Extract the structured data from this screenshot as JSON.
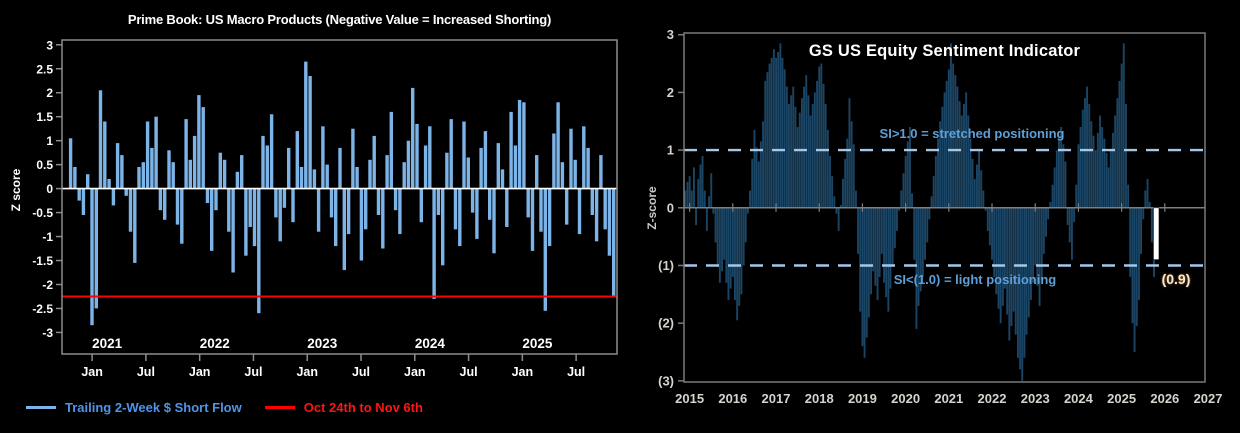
{
  "page": {
    "background": "#000000"
  },
  "chart_data": [
    {
      "id": "prime-book",
      "type": "bar",
      "title": "Prime Book: US Macro Products (Negative Value = Increased Shorting)",
      "ylabel": "Z score",
      "ylim": [
        -3,
        3
      ],
      "xlim": [
        2020.72,
        2025.88
      ],
      "grid": false,
      "bar_color": "#7CB4E8",
      "zero_line_color": "#FFFFFF",
      "frame_color": "#8C8C8C",
      "y_ticks": [
        {
          "v": 3,
          "label": "3"
        },
        {
          "v": 2.5,
          "label": "2.5"
        },
        {
          "v": 2,
          "label": "2"
        },
        {
          "v": 1.5,
          "label": "1.5"
        },
        {
          "v": 1,
          "label": "1"
        },
        {
          "v": 0.5,
          "label": "0.5"
        },
        {
          "v": 0,
          "label": "0"
        },
        {
          "v": -0.5,
          "label": "-0.5"
        },
        {
          "v": -1,
          "label": "-1"
        },
        {
          "v": -1.5,
          "label": "-1.5"
        },
        {
          "v": -2,
          "label": "-2"
        },
        {
          "v": -2.5,
          "label": "-2.5"
        },
        {
          "v": -3,
          "label": "-3"
        }
      ],
      "x_ticks": [
        {
          "t": 2021.0,
          "label": "Jan"
        },
        {
          "t": 2021.5,
          "label": "Jul"
        },
        {
          "t": 2022.0,
          "label": "Jan"
        },
        {
          "t": 2022.5,
          "label": "Jul"
        },
        {
          "t": 2023.0,
          "label": "Jan"
        },
        {
          "t": 2023.5,
          "label": "Jul"
        },
        {
          "t": 2024.0,
          "label": "Jan"
        },
        {
          "t": 2024.5,
          "label": "Jul"
        },
        {
          "t": 2025.0,
          "label": "Jan"
        },
        {
          "t": 2025.5,
          "label": "Jul"
        }
      ],
      "year_labels": [
        {
          "t": 2021.14,
          "label": "2021"
        },
        {
          "t": 2022.14,
          "label": "2022"
        },
        {
          "t": 2023.14,
          "label": "2023"
        },
        {
          "t": 2024.14,
          "label": "2024"
        },
        {
          "t": 2025.14,
          "label": "2025"
        }
      ],
      "x_start": 2020.8,
      "x_step": 0.03976,
      "values": [
        1.05,
        0.45,
        -0.25,
        -0.55,
        0.3,
        -2.85,
        -2.5,
        2.05,
        1.4,
        0.2,
        -0.35,
        0.95,
        0.7,
        -0.15,
        -0.9,
        -1.55,
        0.45,
        0.55,
        1.4,
        0.85,
        1.5,
        -0.45,
        -0.65,
        0.8,
        0.55,
        -0.75,
        -1.15,
        1.45,
        0.6,
        1.1,
        1.95,
        1.7,
        -0.3,
        -1.3,
        -0.45,
        0.75,
        0.6,
        -0.9,
        -1.75,
        0.35,
        0.7,
        -1.4,
        -0.8,
        -1.2,
        -2.6,
        1.1,
        0.9,
        1.55,
        -0.6,
        -1.1,
        -0.4,
        0.85,
        -0.7,
        1.2,
        0.45,
        2.65,
        2.35,
        0.4,
        -0.9,
        1.3,
        0.5,
        -0.6,
        -1.2,
        0.85,
        -1.7,
        -0.95,
        1.25,
        0.45,
        -1.5,
        -0.85,
        0.6,
        1.1,
        -0.55,
        -1.25,
        0.7,
        1.6,
        -0.45,
        -0.95,
        0.55,
        1.0,
        2.1,
        1.35,
        -0.7,
        0.9,
        1.3,
        -2.3,
        -0.55,
        -1.6,
        0.75,
        1.45,
        -0.85,
        -1.2,
        1.4,
        0.65,
        -0.5,
        -1.05,
        0.85,
        1.2,
        -0.65,
        -1.35,
        0.95,
        0.4,
        -0.8,
        1.6,
        0.9,
        1.85,
        1.8,
        -0.6,
        -1.3,
        0.7,
        -0.9,
        -2.55,
        -1.2,
        1.15,
        1.8,
        0.55,
        -0.75,
        1.25,
        0.6,
        -0.95,
        1.3,
        0.85,
        -0.55,
        -1.1,
        0.7,
        -0.85,
        -1.4,
        -2.25
      ],
      "reference_line": {
        "value": -2.25,
        "color": "#FF0000"
      },
      "legend": [
        {
          "label": "Trailing 2-Week $ Short Flow",
          "color": "#4F94E8",
          "line_color": "#7CB4E8"
        },
        {
          "label": "Oct 24th to Nov 6th",
          "color": "#FF1414",
          "line_color": "#FF0000"
        }
      ]
    },
    {
      "id": "gs-sentiment",
      "type": "bar",
      "title": "GS US Equity Sentiment Indicator",
      "ylabel": "Z-score",
      "ylim": [
        -3,
        3
      ],
      "xlim": [
        2014.87,
        2026.93
      ],
      "grid": false,
      "bar_color": "#1B4565",
      "zero_line_color": "#7E7E7E",
      "frame_color": "#7A7A7A",
      "dashed_line_color": "#A3C8EA",
      "y_ticks": [
        {
          "v": 3,
          "label": "3"
        },
        {
          "v": 2,
          "label": "2"
        },
        {
          "v": 1,
          "label": "1"
        },
        {
          "v": 0,
          "label": "0"
        },
        {
          "v": -1,
          "label": "(1)"
        },
        {
          "v": -2,
          "label": "(2)"
        },
        {
          "v": -3,
          "label": "(3)"
        }
      ],
      "x_ticks": [
        {
          "t": 2015,
          "label": "2015"
        },
        {
          "t": 2016,
          "label": "2016"
        },
        {
          "t": 2017,
          "label": "2017"
        },
        {
          "t": 2018,
          "label": "2018"
        },
        {
          "t": 2019,
          "label": "2019"
        },
        {
          "t": 2020,
          "label": "2020"
        },
        {
          "t": 2021,
          "label": "2021"
        },
        {
          "t": 2022,
          "label": "2022"
        },
        {
          "t": 2023,
          "label": "2023"
        },
        {
          "t": 2024,
          "label": "2024"
        },
        {
          "t": 2025,
          "label": "2025"
        },
        {
          "t": 2026,
          "label": "2026"
        },
        {
          "t": 2027,
          "label": "2027"
        }
      ],
      "threshold_lines": [
        {
          "value": 1.0,
          "label": "SI>1.0 = stretched positioning"
        },
        {
          "value": -1.0,
          "label": "SI<(1.0) = light positioning"
        }
      ],
      "x_start": 2014.9,
      "x_step": 0.05,
      "values": [
        0.3,
        0.45,
        0.55,
        0.3,
        0.7,
        -0.3,
        0.5,
        0.75,
        0.9,
        0.3,
        -0.4,
        0.2,
        0.6,
        -0.1,
        -0.6,
        -1.0,
        -1.3,
        -1.1,
        -0.9,
        -1.3,
        -1.6,
        -1.4,
        -1.2,
        -1.6,
        -1.95,
        -1.7,
        -1.5,
        -1.0,
        -0.6,
        -0.1,
        0.3,
        0.85,
        1.35,
        1.05,
        0.8,
        1.15,
        1.5,
        2.2,
        2.35,
        2.5,
        2.6,
        2.75,
        2.6,
        2.7,
        2.85,
        2.6,
        2.4,
        2.1,
        1.8,
        1.95,
        2.1,
        1.75,
        1.4,
        1.65,
        1.9,
        2.1,
        2.3,
        1.95,
        1.6,
        1.8,
        2.0,
        2.2,
        2.45,
        2.5,
        2.15,
        1.8,
        1.35,
        0.9,
        0.55,
        0.2,
        -0.1,
        -0.4,
        0.05,
        0.5,
        0.85,
        1.2,
        1.9,
        1.5,
        1.1,
        0.3,
        -0.8,
        -1.8,
        -2.4,
        -2.6,
        -2.25,
        -1.9,
        -1.5,
        -1.1,
        -1.35,
        -1.6,
        -1.2,
        -0.8,
        -1.3,
        -1.55,
        -1.8,
        -1.4,
        -1.0,
        -0.7,
        -0.4,
        -0.05,
        0.3,
        0.6,
        0.9,
        1.15,
        1.4,
        0.25,
        -0.9,
        -2.1,
        -1.7,
        -1.45,
        -1.2,
        -0.9,
        -0.6,
        -0.2,
        0.2,
        0.55,
        0.9,
        1.2,
        1.5,
        1.75,
        2.0,
        2.2,
        2.4,
        2.85,
        2.5,
        2.3,
        2.1,
        1.85,
        1.6,
        1.8,
        2.0,
        1.6,
        1.2,
        0.85,
        0.5,
        0.75,
        1.0,
        0.65,
        0.3,
        -0.05,
        -0.4,
        -0.65,
        -0.9,
        -1.2,
        -1.5,
        -1.75,
        -2.0,
        -1.7,
        -1.4,
        -1.85,
        -2.3,
        -2.05,
        -1.8,
        -2.2,
        -2.6,
        -2.8,
        -3.0,
        -2.6,
        -2.2,
        -1.9,
        -1.6,
        -1.3,
        -1.0,
        -1.35,
        -1.7,
        -1.25,
        -0.8,
        -0.5,
        -0.2,
        0.1,
        0.4,
        0.7,
        1.0,
        1.2,
        1.4,
        1.1,
        0.8,
        -0.3,
        -0.6,
        -0.9,
        -0.25,
        0.4,
        1.1,
        1.4,
        1.7,
        1.9,
        2.1,
        1.8,
        1.5,
        1.25,
        1.0,
        1.3,
        1.6,
        1.4,
        1.2,
        0.95,
        0.7,
        1.0,
        1.3,
        1.6,
        1.9,
        2.2,
        2.5,
        2.85,
        1.8,
        0.4,
        -1.2,
        -2.0,
        -2.5,
        -2.05,
        -1.6,
        -0.8,
        -0.2,
        0.3,
        0.5,
        0.1,
        -0.6,
        -1.2,
        -0.9
      ],
      "last_point": {
        "value": -0.9,
        "label": "(0.9)",
        "color": "#FFFFFF"
      }
    }
  ]
}
